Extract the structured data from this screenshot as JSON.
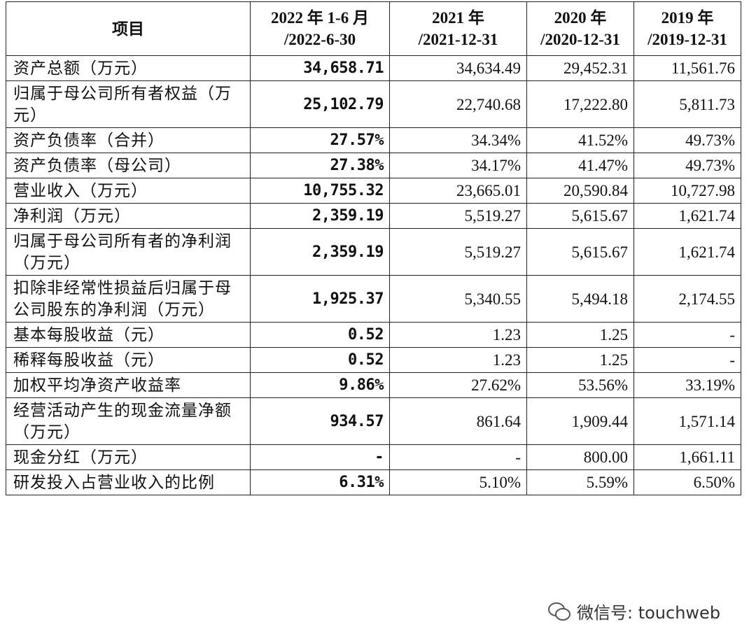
{
  "table": {
    "header": [
      [
        "项目"
      ],
      [
        "2022 年 1-6 月",
        "/2022-6-30"
      ],
      [
        "2021 年",
        "/2021-12-31"
      ],
      [
        "2020 年",
        "/2020-12-31"
      ],
      [
        "2019 年",
        "/2019-12-31"
      ]
    ],
    "rows": [
      [
        "资产总额（万元）",
        "34,658.71",
        "34,634.49",
        "29,452.31",
        "11,561.76"
      ],
      [
        "归属于母公司所有者权益（万元）",
        "25,102.79",
        "22,740.68",
        "17,222.80",
        "5,811.73"
      ],
      [
        "资产负债率（合并）",
        "27.57%",
        "34.34%",
        "41.52%",
        "49.73%"
      ],
      [
        "资产负债率（母公司）",
        "27.38%",
        "34.17%",
        "41.47%",
        "49.73%"
      ],
      [
        "营业收入（万元）",
        "10,755.32",
        "23,665.01",
        "20,590.84",
        "10,727.98"
      ],
      [
        "净利润（万元）",
        "2,359.19",
        "5,519.27",
        "5,615.67",
        "1,621.74"
      ],
      [
        "归属于母公司所有者的净利润（万元）",
        "2,359.19",
        "5,519.27",
        "5,615.67",
        "1,621.74"
      ],
      [
        "扣除非经常性损益后归属于母公司股东的净利润（万元）",
        "1,925.37",
        "5,340.55",
        "5,494.18",
        "2,174.55"
      ],
      [
        "基本每股收益（元）",
        "0.52",
        "1.23",
        "1.25",
        "-"
      ],
      [
        "稀释每股收益（元）",
        "0.52",
        "1.23",
        "1.25",
        "-"
      ],
      [
        "加权平均净资产收益率",
        "9.86%",
        "27.62%",
        "53.56%",
        "33.19%"
      ],
      [
        "经营活动产生的现金流量净额（万元）",
        "934.57",
        "861.64",
        "1,909.44",
        "1,571.14"
      ],
      [
        "现金分红（万元）",
        "-",
        "-",
        "800.00",
        "1,661.11"
      ],
      [
        "研发投入占营业收入的比例",
        "6.31%",
        "5.10%",
        "5.59%",
        "6.50%"
      ]
    ]
  },
  "watermark": "微信号: touchweb"
}
